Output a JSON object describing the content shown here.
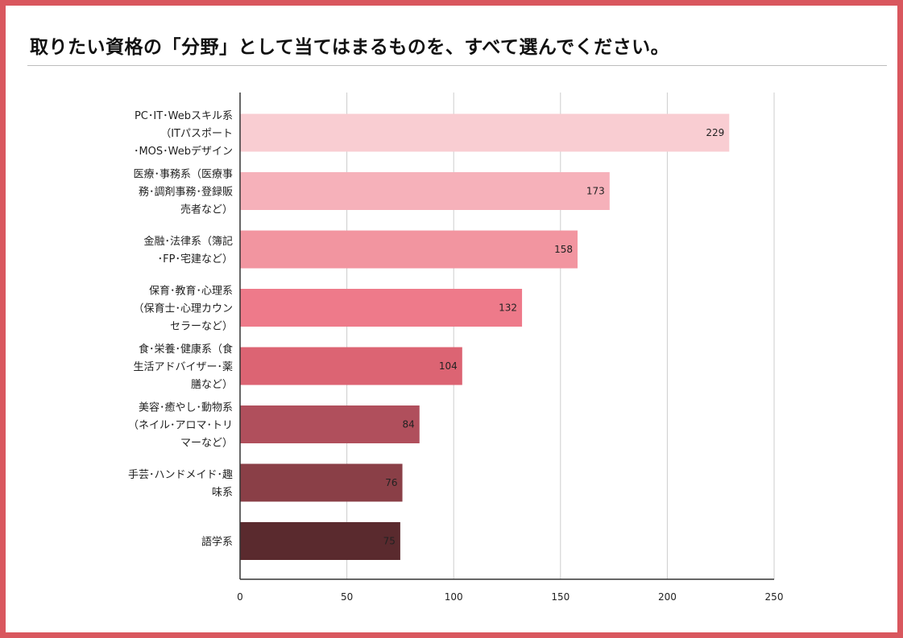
{
  "title": "取りたい資格の「分野」として当てはまるものを、すべて選んでください。",
  "chart_data": {
    "type": "bar",
    "orientation": "horizontal",
    "categories": [
      [
        "PC･IT･Webスキル系",
        "（ITパスポート",
        "･MOS･Webデザイン"
      ],
      [
        "医療･事務系（医療事",
        "務･調剤事務･登録販",
        "売者など）"
      ],
      [
        "金融･法律系（簿記",
        "･FP･宅建など）"
      ],
      [
        "保育･教育･心理系",
        "（保育士･心理カウン",
        "セラーなど）"
      ],
      [
        "食･栄養･健康系（食",
        "生活アドバイザー･薬",
        "膳など）"
      ],
      [
        "美容･癒やし･動物系",
        "（ネイル･アロマ･トリ",
        "マーなど）"
      ],
      [
        "手芸･ハンドメイド･趣",
        "味系"
      ],
      [
        "語学系"
      ]
    ],
    "values": [
      229,
      173,
      158,
      132,
      104,
      84,
      76,
      75
    ],
    "colors": [
      "#f9cdd2",
      "#f6b1ba",
      "#f295a0",
      "#ee7a8a",
      "#dc6473",
      "#b04f5c",
      "#8a3f47",
      "#5a2a2e"
    ],
    "xlim": [
      0,
      250
    ],
    "xticks": [
      0,
      50,
      100,
      150,
      200,
      250
    ],
    "grid": true,
    "legend": "none"
  }
}
